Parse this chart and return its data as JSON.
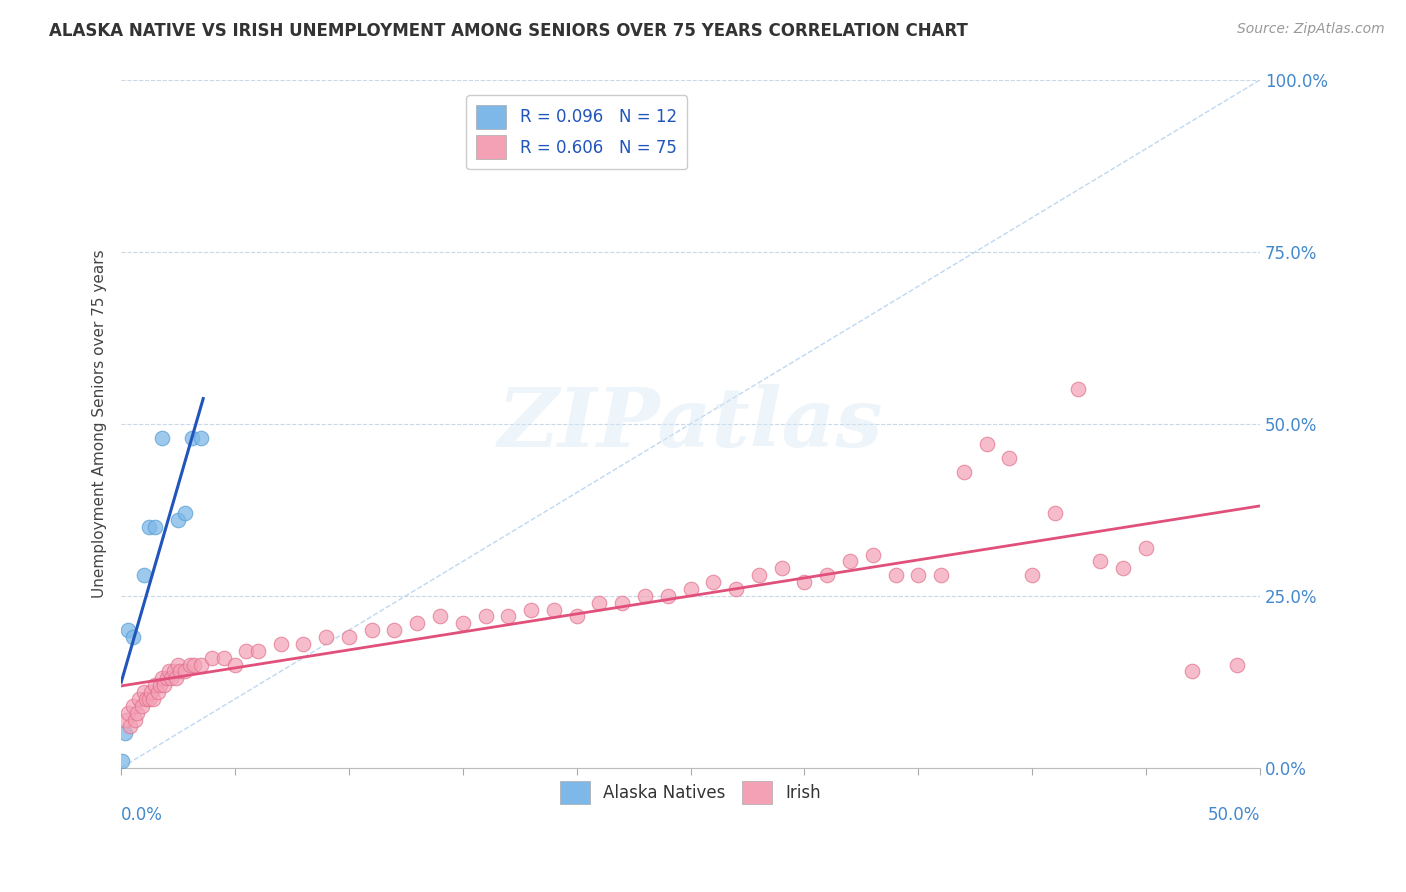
{
  "title": "ALASKA NATIVE VS IRISH UNEMPLOYMENT AMONG SENIORS OVER 75 YEARS CORRELATION CHART",
  "source": "Source: ZipAtlas.com",
  "ylabel": "Unemployment Among Seniors over 75 years",
  "y_tick_labels": [
    "0.0%",
    "25.0%",
    "50.0%",
    "75.0%",
    "100.0%"
  ],
  "y_tick_values": [
    0,
    25,
    50,
    75,
    100
  ],
  "legend_label1": "Alaska Natives",
  "legend_label2": "Irish",
  "alaska_native_x": [
    0.05,
    0.15,
    0.3,
    0.5,
    1.0,
    1.2,
    1.5,
    1.8,
    2.5,
    2.8,
    3.1,
    3.5
  ],
  "alaska_native_y": [
    1,
    5,
    20,
    19,
    28,
    35,
    35,
    48,
    36,
    37,
    48,
    48
  ],
  "irish_x": [
    0.2,
    0.3,
    0.4,
    0.5,
    0.6,
    0.7,
    0.8,
    0.9,
    1.0,
    1.1,
    1.2,
    1.3,
    1.4,
    1.5,
    1.6,
    1.7,
    1.8,
    1.9,
    2.0,
    2.1,
    2.2,
    2.3,
    2.4,
    2.5,
    2.6,
    2.8,
    3.0,
    3.2,
    3.5,
    4.0,
    4.5,
    5.0,
    5.5,
    6.0,
    7.0,
    8.0,
    9.0,
    10.0,
    11.0,
    12.0,
    13.0,
    14.0,
    15.0,
    16.0,
    17.0,
    18.0,
    19.0,
    20.0,
    21.0,
    22.0,
    23.0,
    24.0,
    25.0,
    26.0,
    27.0,
    28.0,
    29.0,
    30.0,
    31.0,
    32.0,
    33.0,
    34.0,
    35.0,
    36.0,
    37.0,
    38.0,
    39.0,
    40.0,
    41.0,
    42.0,
    43.0,
    44.0,
    45.0,
    47.0,
    49.0
  ],
  "irish_y": [
    7,
    8,
    6,
    9,
    7,
    8,
    10,
    9,
    11,
    10,
    10,
    11,
    10,
    12,
    11,
    12,
    13,
    12,
    13,
    14,
    13,
    14,
    13,
    15,
    14,
    14,
    15,
    15,
    15,
    16,
    16,
    15,
    17,
    17,
    18,
    18,
    19,
    19,
    20,
    20,
    21,
    22,
    21,
    22,
    22,
    23,
    23,
    22,
    24,
    24,
    25,
    25,
    26,
    27,
    26,
    28,
    29,
    27,
    28,
    30,
    31,
    28,
    28,
    28,
    43,
    47,
    45,
    28,
    37,
    55,
    30,
    29,
    32,
    14,
    15
  ],
  "background_color": "#ffffff",
  "scatter_alaska_color": "#7db8e8",
  "scatter_alaska_edge": "#5a9fd4",
  "scatter_irish_color": "#f4a0b5",
  "scatter_irish_edge": "#e0708a",
  "trendline_alaska_color": "#2255bb",
  "trendline_irish_color": "#e0507a",
  "diagonal_color": "#b8d4f0",
  "watermark_text": "ZIPatlas",
  "xlim": [
    0,
    50
  ],
  "ylim": [
    0,
    100
  ]
}
